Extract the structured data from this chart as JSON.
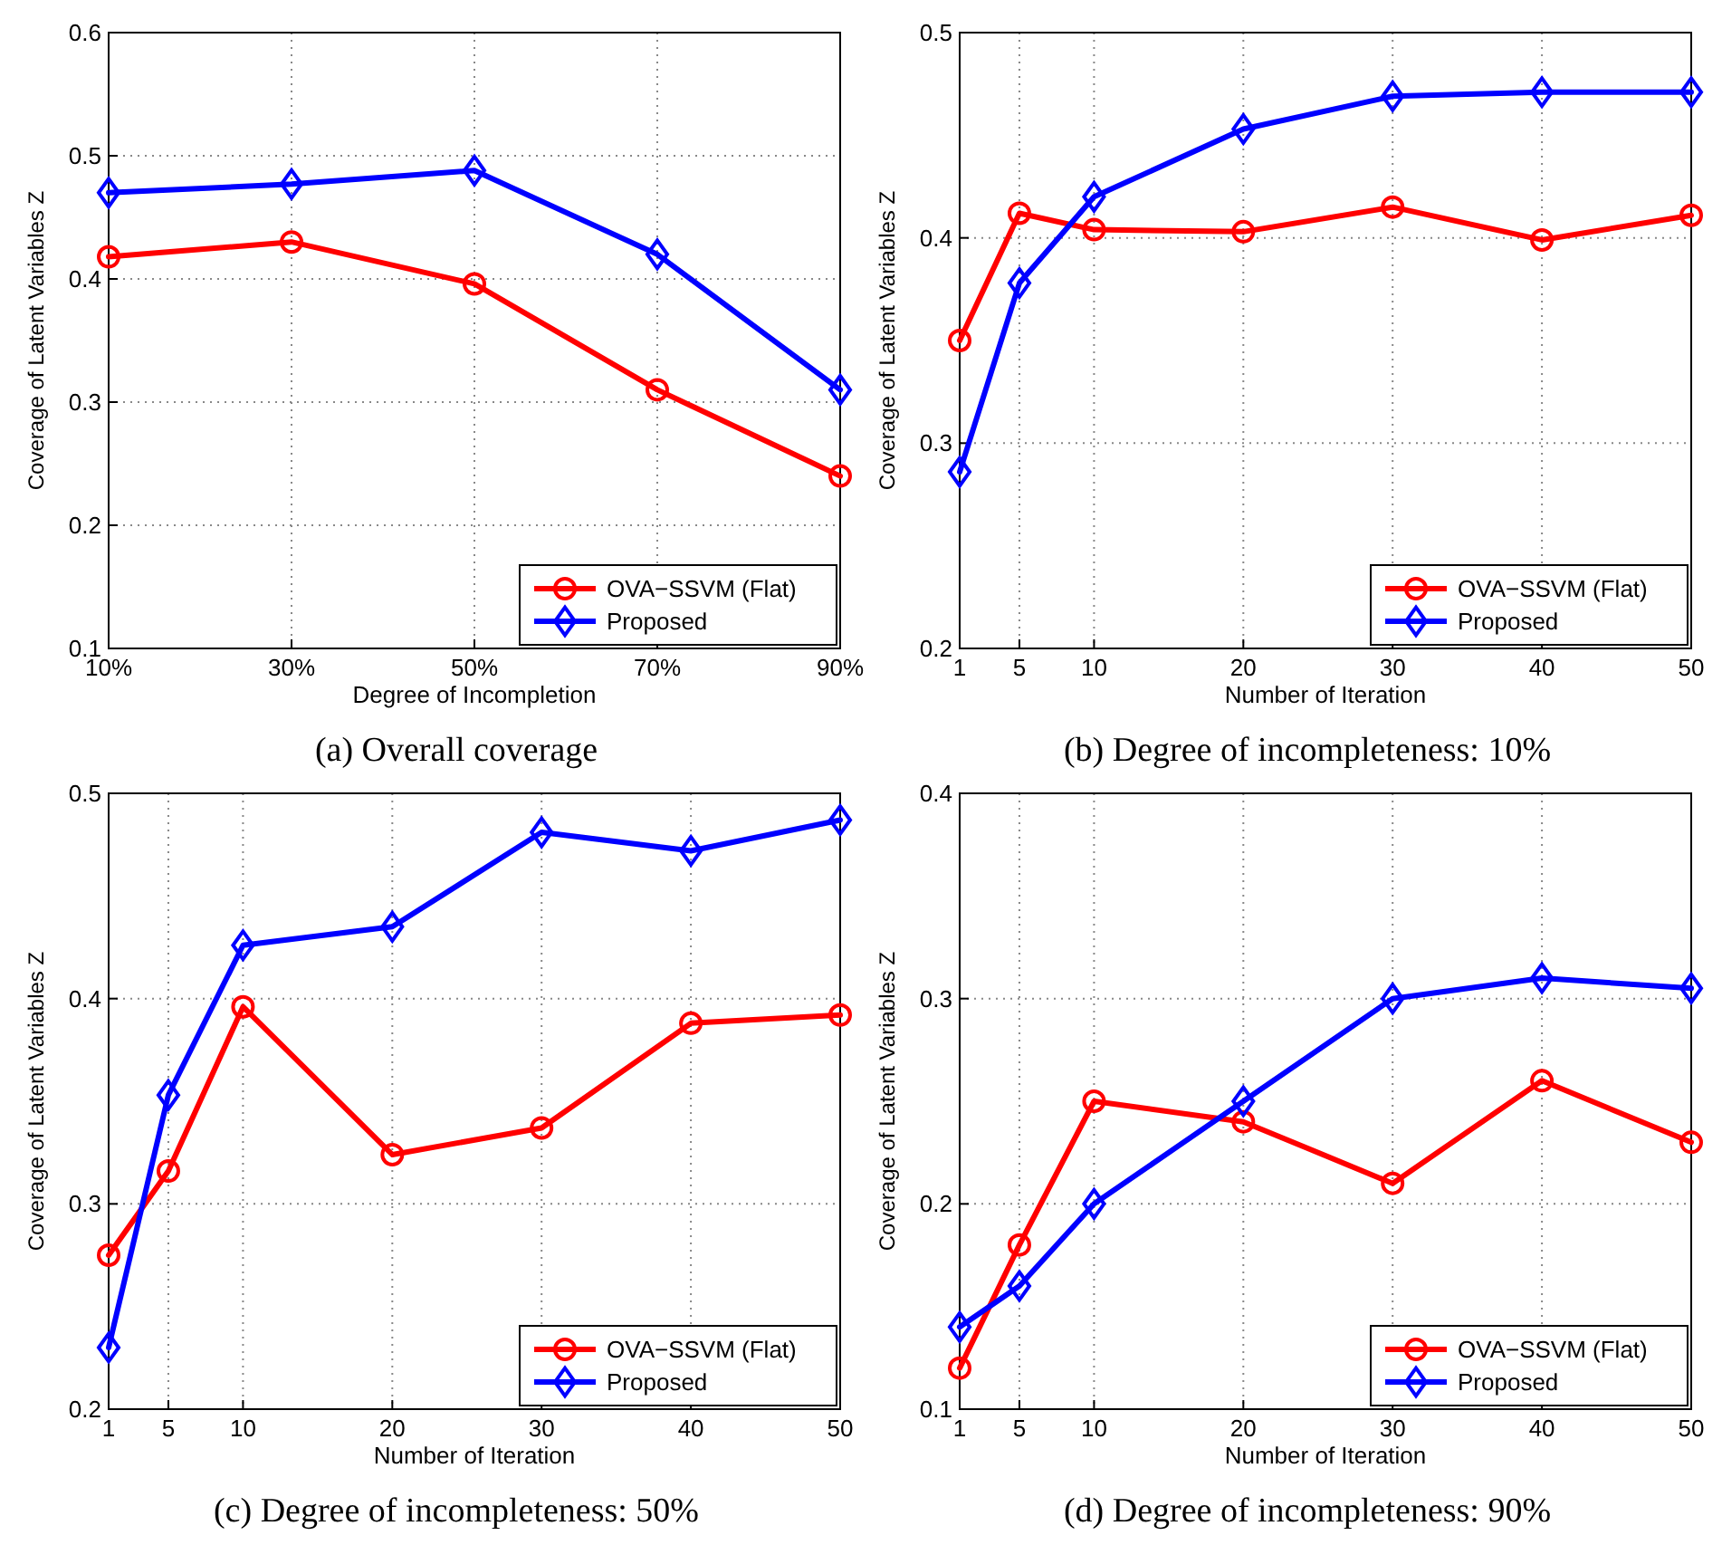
{
  "chart_data": [
    {
      "type": "line",
      "title": "(a)  Overall coverage",
      "xlabel": "Degree of Incompletion",
      "ylabel": "Coverage of Latent Variables Z",
      "categories": [
        "10%",
        "30%",
        "50%",
        "70%",
        "90%"
      ],
      "ylim": [
        0.1,
        0.6
      ],
      "yticks": [
        0.1,
        0.2,
        0.3,
        0.4,
        0.5,
        0.6
      ],
      "grid": true,
      "legend": "bottom right",
      "line_style": "solid",
      "series": [
        {
          "name": "OVA−SSVM (Flat)",
          "color": "#ff0000",
          "marker": "circle",
          "values": [
            0.418,
            0.43,
            0.396,
            0.31,
            0.24
          ]
        },
        {
          "name": "Proposed",
          "color": "#0000ff",
          "marker": "diamond",
          "values": [
            0.47,
            0.477,
            0.488,
            0.42,
            0.31
          ]
        }
      ]
    },
    {
      "type": "line",
      "title": "(b)  Degree of incompleteness: 10%",
      "xlabel": "Number of Iteration",
      "ylabel": "Coverage of Latent Variables Z",
      "x": [
        1,
        5,
        10,
        20,
        30,
        40,
        50
      ],
      "xlim": [
        1,
        50
      ],
      "xticks": [
        1,
        5,
        10,
        20,
        30,
        40,
        50
      ],
      "ylim": [
        0.2,
        0.5
      ],
      "yticks": [
        0.2,
        0.3,
        0.4,
        0.5
      ],
      "grid": true,
      "legend": "bottom right",
      "line_style": "solid",
      "series": [
        {
          "name": "OVA−SSVM (Flat)",
          "color": "#ff0000",
          "marker": "circle",
          "values": [
            0.35,
            0.412,
            0.404,
            0.403,
            0.415,
            0.399,
            0.411
          ]
        },
        {
          "name": "Proposed",
          "color": "#0000ff",
          "marker": "diamond",
          "values": [
            0.286,
            0.378,
            0.42,
            0.453,
            0.469,
            0.471,
            0.471
          ]
        }
      ]
    },
    {
      "type": "line",
      "title": "(c)  Degree of incompleteness: 50%",
      "xlabel": "Number of Iteration",
      "ylabel": "Coverage of Latent Variables Z",
      "x": [
        1,
        5,
        10,
        20,
        30,
        40,
        50
      ],
      "xlim": [
        1,
        50
      ],
      "xticks": [
        1,
        5,
        10,
        20,
        30,
        40,
        50
      ],
      "ylim": [
        0.2,
        0.5
      ],
      "yticks": [
        0.2,
        0.3,
        0.4,
        0.5
      ],
      "grid": true,
      "legend": "bottom right",
      "line_style": "solid",
      "series": [
        {
          "name": "OVA−SSVM (Flat)",
          "color": "#ff0000",
          "marker": "circle",
          "values": [
            0.275,
            0.316,
            0.396,
            0.324,
            0.337,
            0.388,
            0.392
          ]
        },
        {
          "name": "Proposed",
          "color": "#0000ff",
          "marker": "diamond",
          "values": [
            0.23,
            0.353,
            0.426,
            0.435,
            0.481,
            0.472,
            0.487
          ]
        }
      ]
    },
    {
      "type": "line",
      "title": "(d)  Degree of incompleteness: 90%",
      "xlabel": "Number of Iteration",
      "ylabel": "Coverage of Latent Variables Z",
      "x": [
        1,
        5,
        10,
        20,
        30,
        40,
        50
      ],
      "xlim": [
        1,
        50
      ],
      "xticks": [
        1,
        5,
        10,
        20,
        30,
        40,
        50
      ],
      "ylim": [
        0.1,
        0.4
      ],
      "yticks": [
        0.1,
        0.2,
        0.3,
        0.4
      ],
      "grid": true,
      "legend": "bottom right",
      "line_style": "solid",
      "series": [
        {
          "name": "OVA−SSVM (Flat)",
          "color": "#ff0000",
          "marker": "circle",
          "values": [
            0.12,
            0.18,
            0.25,
            0.24,
            0.21,
            0.26,
            0.23
          ]
        },
        {
          "name": "Proposed",
          "color": "#0000ff",
          "marker": "diamond",
          "values": [
            0.14,
            0.16,
            0.2,
            0.25,
            0.3,
            0.31,
            0.305
          ]
        }
      ]
    }
  ]
}
